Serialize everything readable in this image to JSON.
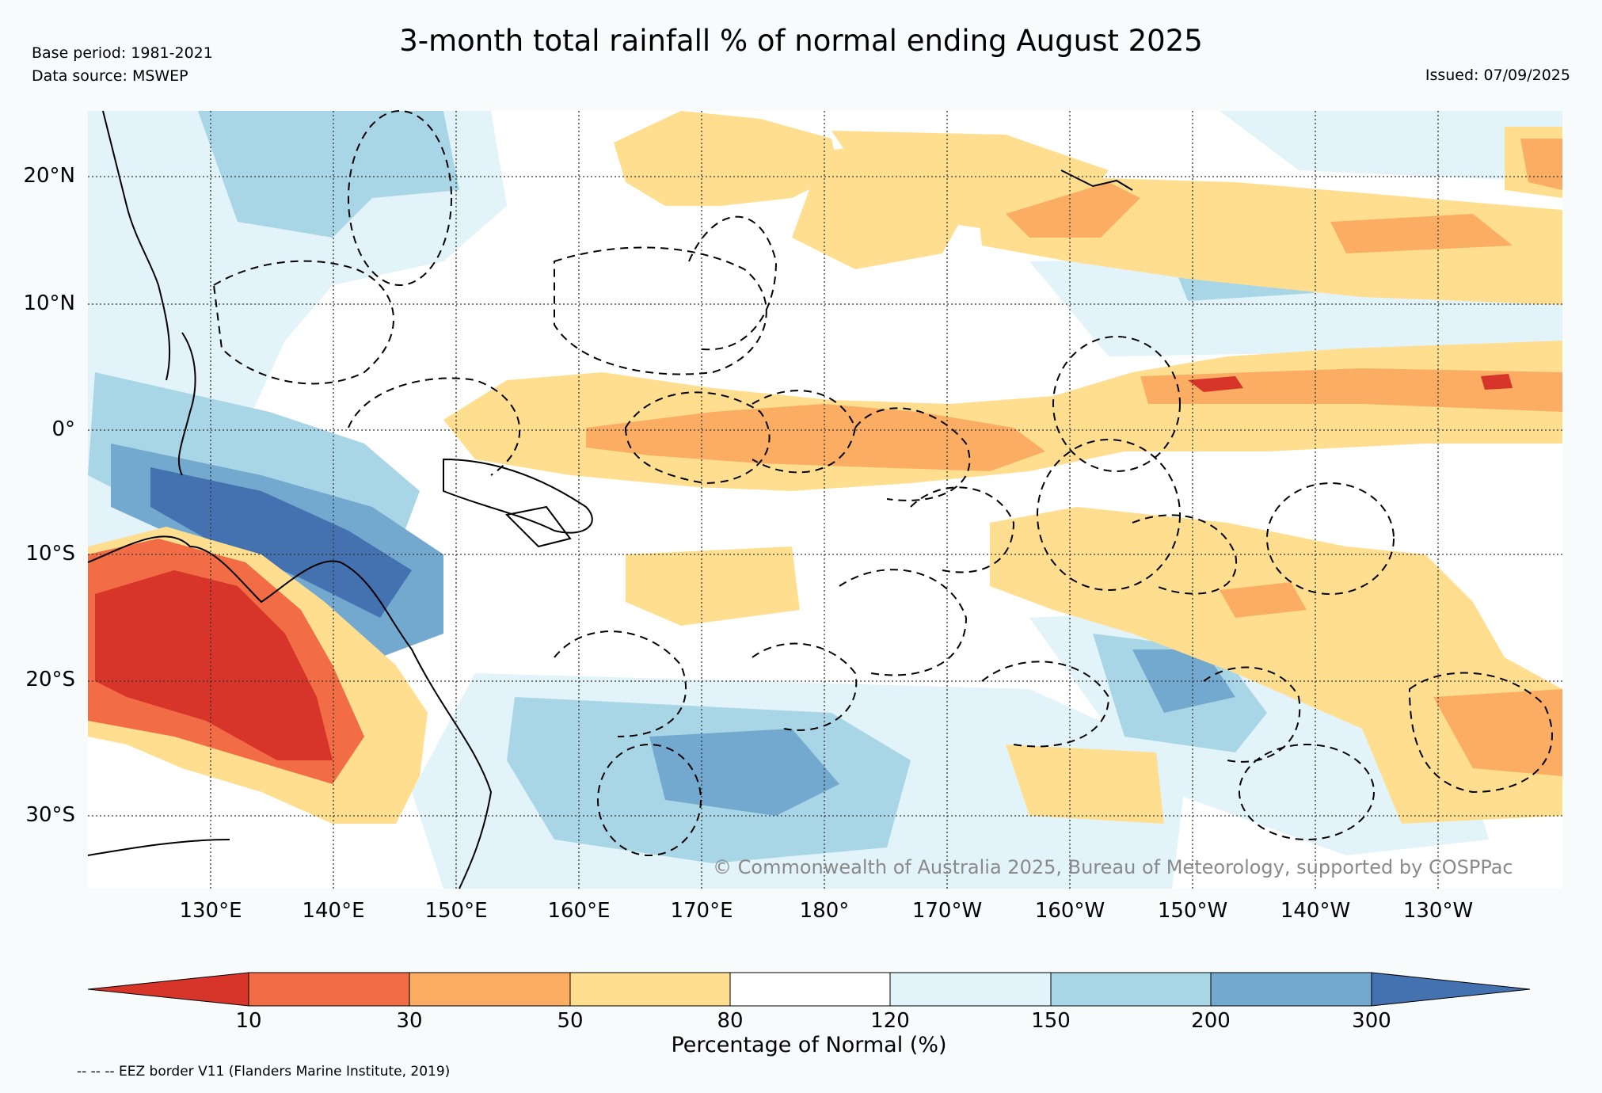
{
  "header": {
    "title": "3-month total rainfall % of normal ending August 2025",
    "base_period": "Base period: 1981-2021",
    "data_source": "Data source: MSWEP",
    "issued": "Issued: 07/09/2025"
  },
  "map": {
    "lat_labels": [
      "20°N",
      "10°N",
      "0°",
      "10°S",
      "20°S",
      "30°S"
    ],
    "lon_labels": [
      "130°E",
      "140°E",
      "150°E",
      "160°E",
      "170°E",
      "180°",
      "170°W",
      "160°W",
      "150°W",
      "140°W",
      "130°W"
    ],
    "copyright": "© Commonwealth of Australia 2025, Bureau of Meteorology, supported by COSPPac"
  },
  "colorbar": {
    "title": "Percentage of Normal (%)",
    "ticks": [
      "10",
      "30",
      "50",
      "80",
      "120",
      "150",
      "200",
      "300"
    ],
    "colors": [
      "#d7342a",
      "#f26c45",
      "#fbae63",
      "#ffdf8f",
      "#ffffff",
      "#e2f3f9",
      "#a8d6e6",
      "#74a9cf",
      "#4472b0"
    ]
  },
  "footer": {
    "eez_note": "-- -- -- EEZ border V11 (Flanders Marine Institute, 2019)"
  },
  "colors": {
    "background": "#f7fbfc",
    "copyright_text": "#8a8a8a"
  }
}
